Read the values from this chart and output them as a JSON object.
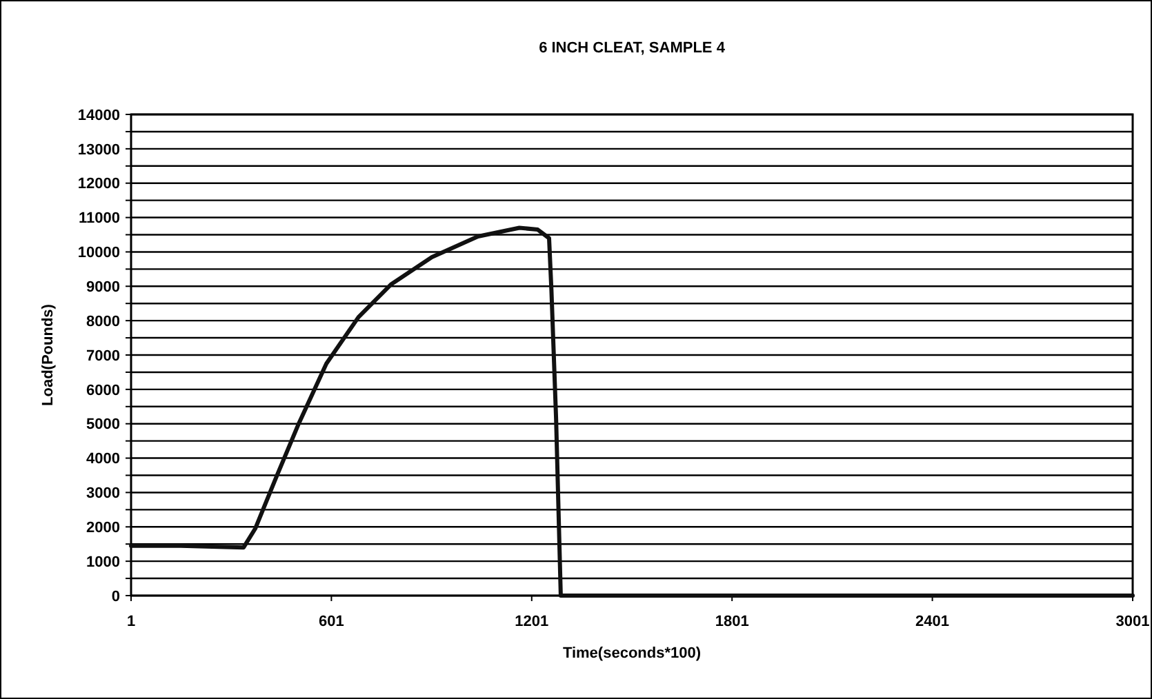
{
  "chart_data": {
    "type": "line",
    "title": "6 INCH CLEAT, SAMPLE 4",
    "xlabel": "Time(seconds*100)",
    "ylabel": "Load(Pounds)",
    "x": [
      1,
      150,
      338,
      373,
      434,
      503,
      586,
      682,
      779,
      902,
      1040,
      1164,
      1219,
      1253,
      1260,
      1274,
      1288,
      1500,
      2000,
      2500,
      3001
    ],
    "series": [
      {
        "color": "#111111",
        "values": [
          1450,
          1450,
          1400,
          1950,
          3400,
          5000,
          6750,
          8100,
          9050,
          9850,
          10450,
          10700,
          10650,
          10400,
          8900,
          5150,
          0,
          0,
          0,
          0,
          0
        ]
      }
    ],
    "xlim": [
      1,
      3001
    ],
    "xticks": [
      1,
      601,
      1201,
      1801,
      2401,
      3001
    ],
    "ylim": [
      0,
      14000
    ],
    "yticks": [
      0,
      {
        "value": 500,
        "label": null
      },
      1000,
      {
        "value": 1500,
        "label": null
      },
      2000,
      {
        "value": 2500,
        "label": null
      },
      3000,
      {
        "value": 3500,
        "label": null
      },
      4000,
      {
        "value": 4500,
        "label": null
      },
      5000,
      {
        "value": 5500,
        "label": null
      },
      6000,
      {
        "value": 6500,
        "label": null
      },
      7000,
      {
        "value": 7500,
        "label": null
      },
      8000,
      {
        "value": 8500,
        "label": null
      },
      9000,
      {
        "value": 9500,
        "label": null
      },
      10000,
      {
        "value": 10500,
        "label": null
      },
      11000,
      {
        "value": 11500,
        "label": null
      },
      12000,
      {
        "value": 12500,
        "label": null
      },
      13000,
      {
        "value": 13500,
        "label": null
      },
      14000
    ],
    "grid": "y",
    "marker": "none",
    "line_style": "solid"
  }
}
